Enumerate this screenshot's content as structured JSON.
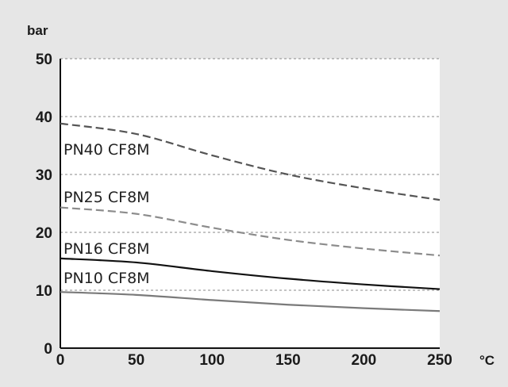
{
  "chart_data": {
    "type": "line",
    "title": "",
    "ylabel": "bar",
    "xlabel": "°C",
    "xlim": [
      0,
      250
    ],
    "ylim": [
      0,
      50
    ],
    "x_ticks": [
      "0",
      "50",
      "100",
      "150",
      "200",
      "250"
    ],
    "y_ticks": [
      "0",
      "10",
      "20",
      "30",
      "40",
      "50"
    ],
    "grid": "horizontal dashed",
    "x": [
      0,
      50,
      100,
      150,
      200,
      250
    ],
    "series": [
      {
        "name": "PN40 CF8M",
        "values": [
          38.8,
          37.0,
          33.3,
          30.0,
          27.6,
          25.6
        ],
        "color": "#555555",
        "style": "dashed"
      },
      {
        "name": "PN25 CF8M",
        "values": [
          24.3,
          23.2,
          20.8,
          18.7,
          17.2,
          16.0
        ],
        "color": "#8c8c8c",
        "style": "dashed"
      },
      {
        "name": "PN16 CF8M",
        "values": [
          15.5,
          14.8,
          13.3,
          12.0,
          11.0,
          10.2
        ],
        "color": "#111111",
        "style": "solid"
      },
      {
        "name": "PN10 CF8M",
        "values": [
          9.7,
          9.2,
          8.3,
          7.5,
          6.9,
          6.4
        ],
        "color": "#7a7a7a",
        "style": "solid"
      }
    ]
  }
}
